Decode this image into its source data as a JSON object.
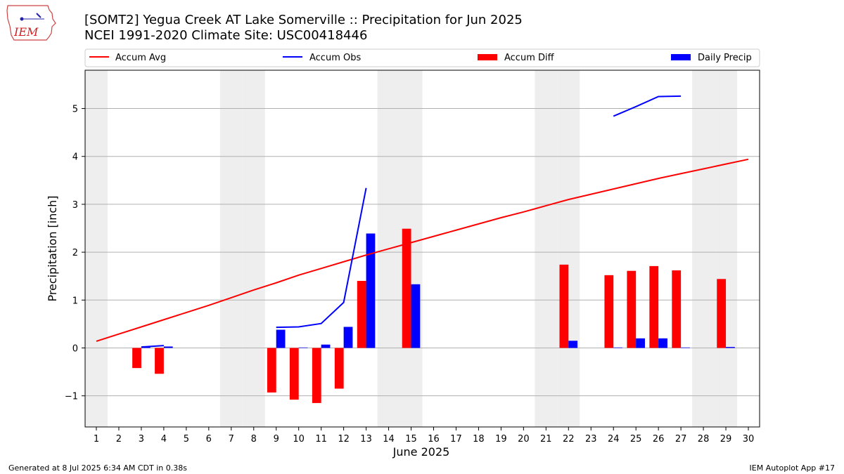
{
  "header": {
    "title_line1": "[SOMT2] Yegua Creek  AT Lake Somerville :: Precipitation for Jun 2025",
    "title_line2": "NCEI 1991-2020 Climate Site: USC00418446",
    "logo_text": "IEM",
    "logo_icon": "iowa-state-outline-icon"
  },
  "footer": {
    "left": "Generated at 8 Jul 2025 6:34 AM CDT in 0.38s",
    "right": "IEM Autoplot App #17"
  },
  "colors": {
    "avg": "#ff0000",
    "obs": "#0000ff",
    "diff": "#ff0000",
    "daily": "#0000ff",
    "weekend_shade": "#eeeeee",
    "grid": "#b0b0b0"
  },
  "chart_data": {
    "type": "bar",
    "xlabel": "June 2025",
    "ylabel": "Precipitation [inch]",
    "xlim": [
      0.5,
      30.5
    ],
    "ylim": [
      -1.65,
      5.8
    ],
    "yticks": [
      -1,
      0,
      1,
      2,
      3,
      4,
      5
    ],
    "ytick_labels": [
      "−1",
      "0",
      "1",
      "2",
      "3",
      "4",
      "5"
    ],
    "xticks": [
      1,
      2,
      3,
      4,
      5,
      6,
      7,
      8,
      9,
      10,
      11,
      12,
      13,
      14,
      15,
      16,
      17,
      18,
      19,
      20,
      21,
      22,
      23,
      24,
      25,
      26,
      27,
      28,
      29,
      30
    ],
    "grid": "horizontal",
    "legend_position": "top",
    "weekend_days": [
      1,
      7,
      8,
      14,
      15,
      21,
      22,
      28,
      29
    ],
    "legend": [
      "Accum Avg",
      "Accum Obs",
      "Accum Diff",
      "Daily Precip"
    ],
    "series": [
      {
        "name": "Accum Avg",
        "kind": "line",
        "x": [
          1,
          2,
          3,
          4,
          5,
          6,
          7,
          8,
          9,
          10,
          11,
          12,
          13,
          14,
          15,
          16,
          17,
          18,
          19,
          20,
          21,
          22,
          23,
          24,
          25,
          26,
          27,
          28,
          29,
          30
        ],
        "values": [
          0.14,
          0.29,
          0.44,
          0.59,
          0.74,
          0.89,
          1.05,
          1.21,
          1.36,
          1.52,
          1.66,
          1.8,
          1.94,
          2.07,
          2.2,
          2.33,
          2.46,
          2.59,
          2.72,
          2.84,
          2.97,
          3.1,
          3.21,
          3.32,
          3.43,
          3.54,
          3.64,
          3.74,
          3.84,
          3.94
        ]
      },
      {
        "name": "Accum Obs",
        "kind": "line",
        "segments": [
          {
            "x": [
              3,
              4
            ],
            "values": [
              0.02,
              0.05
            ]
          },
          {
            "x": [
              9,
              10,
              11,
              12,
              13
            ],
            "values": [
              0.43,
              0.44,
              0.51,
              0.95,
              3.34
            ]
          },
          {
            "x": [
              24,
              25,
              26,
              27
            ],
            "values": [
              4.84,
              5.04,
              5.25,
              5.26
            ]
          }
        ]
      },
      {
        "name": "Accum Diff",
        "kind": "bar",
        "x": [
          3,
          4,
          9,
          10,
          11,
          12,
          13,
          15,
          22,
          24,
          25,
          26,
          27,
          29
        ],
        "values": [
          -0.42,
          -0.54,
          -0.93,
          -1.08,
          -1.15,
          -0.85,
          1.4,
          2.49,
          1.74,
          1.52,
          1.61,
          1.71,
          1.62,
          1.44
        ]
      },
      {
        "name": "Daily Precip",
        "kind": "bar",
        "x": [
          3,
          4,
          9,
          10,
          11,
          12,
          13,
          15,
          22,
          24,
          25,
          26,
          27,
          29
        ],
        "values": [
          0.02,
          0.03,
          0.38,
          0.01,
          0.07,
          0.44,
          2.39,
          1.33,
          0.15,
          0.01,
          0.2,
          0.2,
          0.01,
          0.02
        ]
      }
    ]
  }
}
